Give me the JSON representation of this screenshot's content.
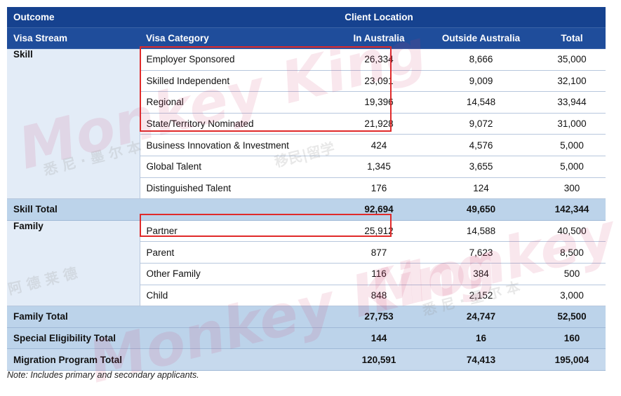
{
  "header": {
    "outcome": "Outcome",
    "client_location": "Client Location",
    "col_visa_stream": "Visa Stream",
    "col_visa_category": "Visa Category",
    "col_in_australia": "In Australia",
    "col_outside_australia": "Outside Australia",
    "col_total": "Total"
  },
  "skill": {
    "stream": "Skill",
    "rows": [
      {
        "category": "Employer Sponsored",
        "in": "26,334",
        "out": "8,666",
        "total": "35,000"
      },
      {
        "category": "Skilled Independent",
        "in": "23,091",
        "out": "9,009",
        "total": "32,100"
      },
      {
        "category": "Regional",
        "in": "19,396",
        "out": "14,548",
        "total": "33,944"
      },
      {
        "category": "State/Territory Nominated",
        "in": "21,928",
        "out": "9,072",
        "total": "31,000"
      },
      {
        "category": "Business Innovation & Investment",
        "in": "424",
        "out": "4,576",
        "total": "5,000"
      },
      {
        "category": "Global Talent",
        "in": "1,345",
        "out": "3,655",
        "total": "5,000"
      },
      {
        "category": "Distinguished Talent",
        "in": "176",
        "out": "124",
        "total": "300"
      }
    ],
    "total": {
      "label": "Skill Total",
      "in": "92,694",
      "out": "49,650",
      "total": "142,344"
    }
  },
  "family": {
    "stream": "Family",
    "rows": [
      {
        "category": "Partner",
        "in": "25,912",
        "out": "14,588",
        "total": "40,500"
      },
      {
        "category": "Parent",
        "in": "877",
        "out": "7,623",
        "total": "8,500"
      },
      {
        "category": "Other Family",
        "in": "116",
        "out": "384",
        "total": "500"
      },
      {
        "category": "Child",
        "in": "848",
        "out": "2,152",
        "total": "3,000"
      }
    ],
    "total": {
      "label": "Family Total",
      "in": "27,753",
      "out": "24,747",
      "total": "52,500"
    }
  },
  "special": {
    "label": "Special Eligibility Total",
    "in": "144",
    "out": "16",
    "total": "160"
  },
  "program": {
    "label": "Migration Program Total",
    "in": "120,591",
    "out": "74,413",
    "total": "195,004"
  },
  "note": "Note: Includes primary and secondary applicants.",
  "watermark": {
    "brand": "Monkey King",
    "cn1": "悉 尼 · 墨 尔 本",
    "cn2": "移民|留学",
    "cn3": "阿 德 莱 德"
  },
  "colors": {
    "header_bg": "#16428f",
    "highlight": "#e02a2a",
    "stream_bg": "#e3ecf7",
    "total_bg": "#bcd3ea"
  }
}
